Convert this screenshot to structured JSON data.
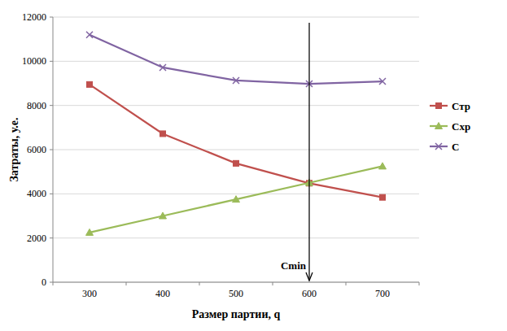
{
  "chart_data": {
    "type": "line",
    "x_label": "Размер партии, q",
    "y_label": "Затраты, у.е.",
    "categories": [
      "300",
      "400",
      "500",
      "600",
      "700"
    ],
    "series": [
      {
        "name": "Стр",
        "color": "#c0504d",
        "marker": "square",
        "values": [
          8950,
          6720,
          5380,
          4480,
          3840
        ]
      },
      {
        "name": "Схр",
        "color": "#9bbb59",
        "marker": "triangle",
        "values": [
          2250,
          3000,
          3750,
          4500,
          5250
        ]
      },
      {
        "name": "С",
        "color": "#8064a2",
        "marker": "x",
        "values": [
          11200,
          9720,
          9130,
          8980,
          9090
        ]
      }
    ],
    "ylim": [
      0,
      12000
    ],
    "yticks": [
      0,
      2000,
      4000,
      6000,
      8000,
      10000,
      12000
    ],
    "grid": true,
    "legend": "right",
    "annotations": [
      {
        "text": "Cmin",
        "x": "600"
      }
    ]
  }
}
